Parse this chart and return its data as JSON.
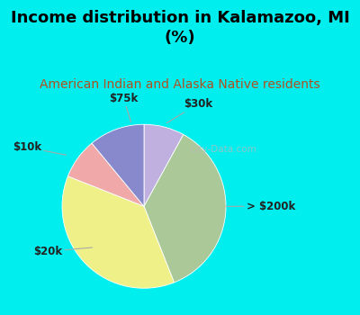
{
  "title": "Income distribution in Kalamazoo, MI\n(%)",
  "subtitle": "American Indian and Alaska Native residents",
  "title_fontsize": 13,
  "subtitle_fontsize": 10,
  "title_color": "#000000",
  "subtitle_color": "#b05020",
  "background_color": "#00eeee",
  "chart_bg_top": "#dff0e8",
  "chart_bg_bottom": "#c8e8d8",
  "slices": [
    {
      "label": "$30k",
      "value": 8,
      "color": "#c0b0e0"
    },
    {
      "label": "> $200k",
      "value": 36,
      "color": "#aac898"
    },
    {
      "label": "$20k",
      "value": 37,
      "color": "#f0f088"
    },
    {
      "label": "$10k",
      "value": 8,
      "color": "#f0a8a8"
    },
    {
      "label": "$75k",
      "value": 11,
      "color": "#8888cc"
    }
  ],
  "watermark": "City-Data.com",
  "watermark_color": "#bbbbbb",
  "label_fontsize": 8.5
}
